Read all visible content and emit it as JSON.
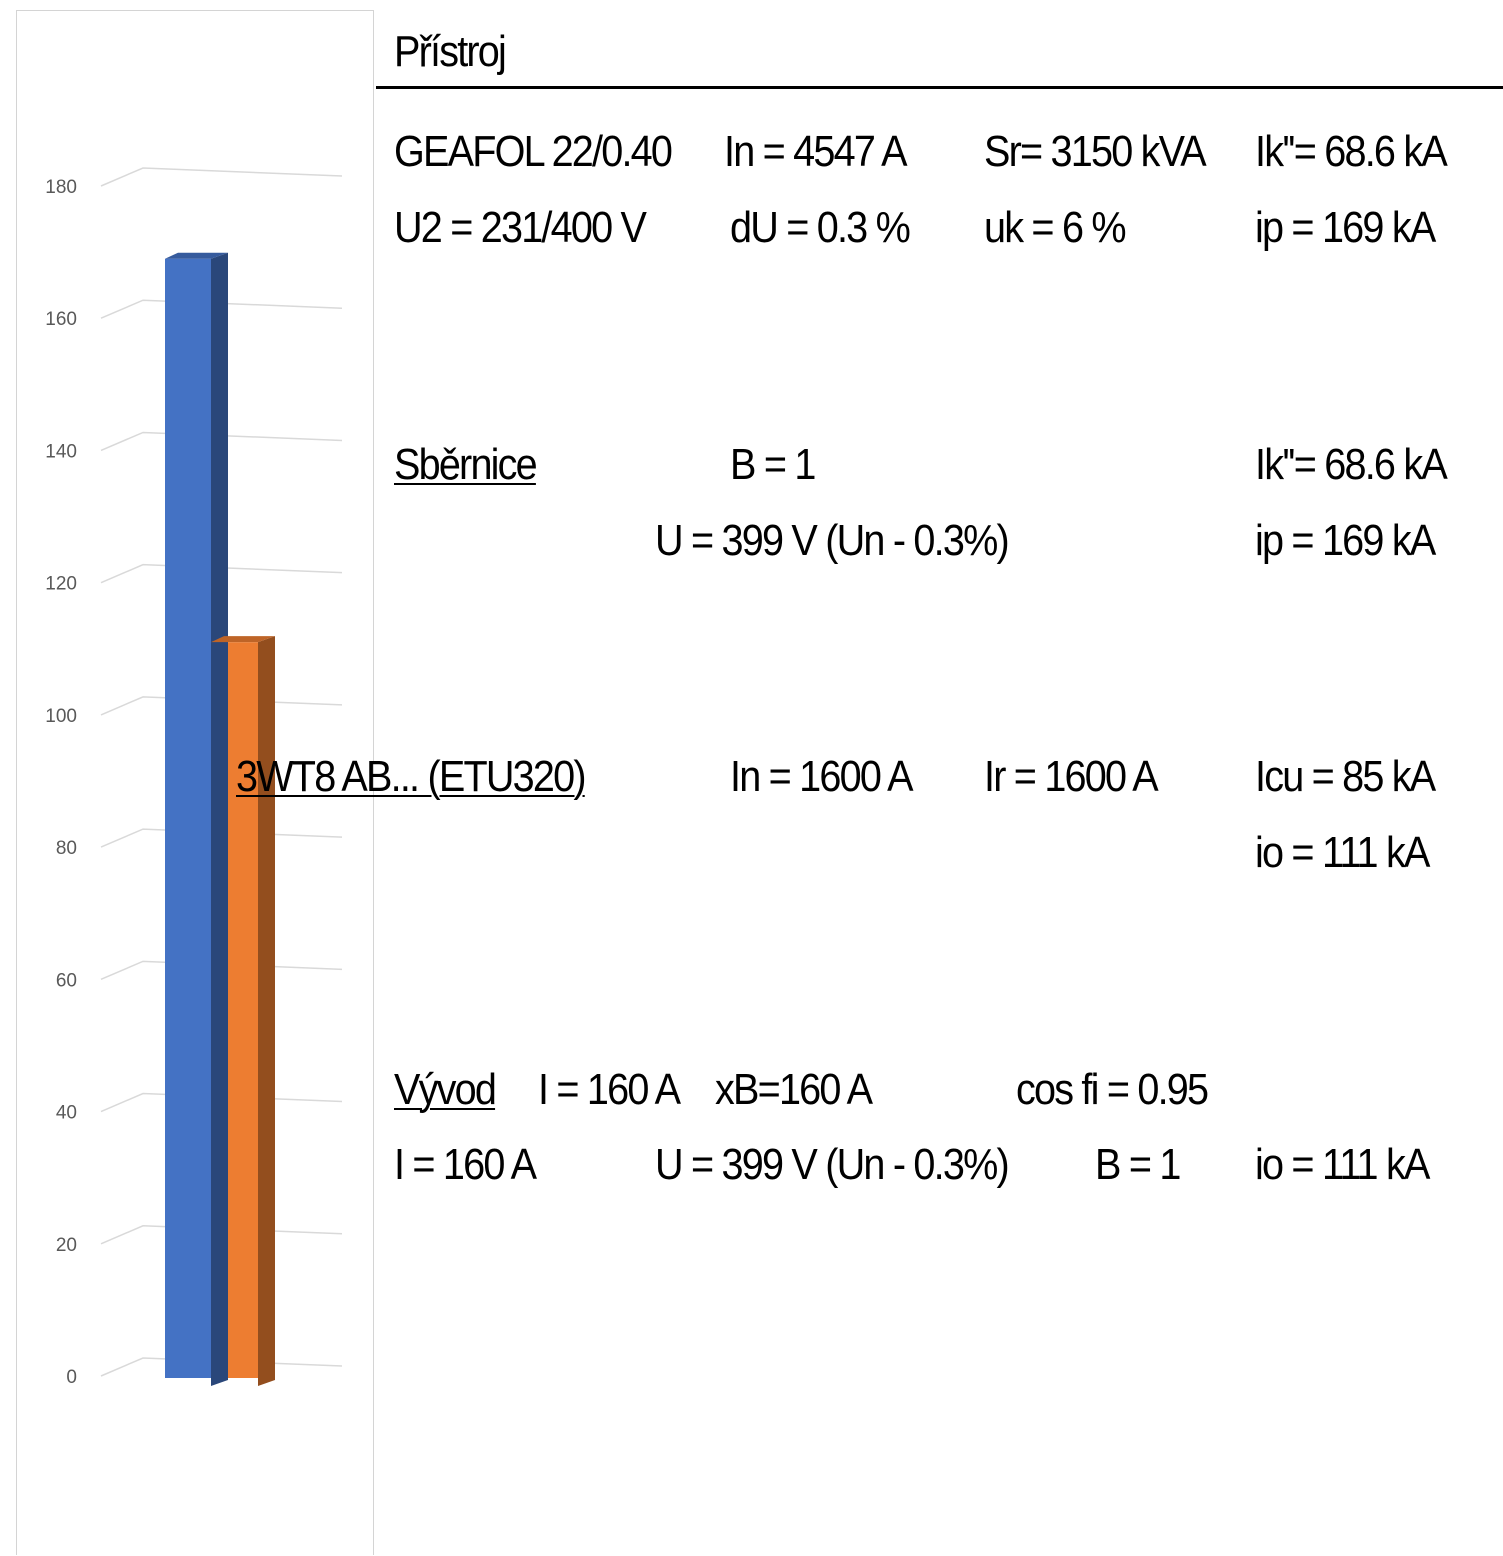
{
  "chart_data": {
    "type": "bar",
    "categories": [
      ""
    ],
    "series": [
      {
        "values": [
          169
        ],
        "color": "#4472C4"
      },
      {
        "values": [
          111
        ],
        "color": "#ED7D31"
      }
    ],
    "ylim": [
      0,
      180
    ],
    "yticks": [
      "0",
      "20",
      "40",
      "60",
      "80",
      "100",
      "120",
      "140",
      "160",
      "180"
    ],
    "grid": true,
    "three_d": true
  },
  "report": {
    "header": "Přístroj",
    "transformer": {
      "name": "GEAFOL 22/0.40",
      "in": "In = 4547 A",
      "sr": "Sr= 3150 kVA",
      "ik": "Ik''= 68.6 kA",
      "u2": "U2 = 231/400 V",
      "du": "dU = 0.3 %",
      "uk": "uk = 6 %",
      "ip": "ip = 169 kA"
    },
    "busbar": {
      "name": "Sběrnice",
      "b": "B = 1",
      "ik": "Ik''= 68.6 kA",
      "u": "U = 399 V (Un - 0.3%)",
      "ip": "ip = 169 kA"
    },
    "breaker": {
      "name": "3WT8 AB... (ETU320)",
      "in": "In = 1600 A",
      "ir": "Ir = 1600 A",
      "icu": "Icu = 85 kA",
      "io": "io = 111 kA"
    },
    "outlet": {
      "name": "Vývod",
      "i": "I = 160 A",
      "ib": "xB=160 A",
      "cos": "cos fi = 0.95",
      "i2": "I = 160 A",
      "u": "U = 399 V (Un - 0.3%)",
      "b": "B = 1",
      "io": "io = 111 kA"
    }
  }
}
